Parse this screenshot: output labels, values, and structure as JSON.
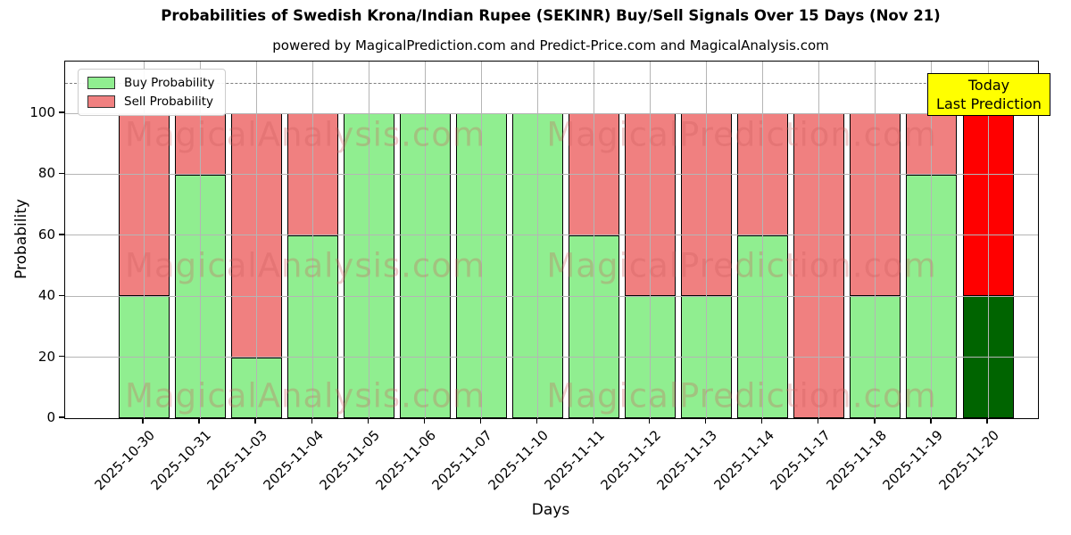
{
  "title": "Probabilities of Swedish Krona/Indian Rupee (SEKINR) Buy/Sell Signals Over 15 Days (Nov 21)",
  "subtitle": "powered by MagicalPrediction.com and Predict-Price.com and MagicalAnalysis.com",
  "axes": {
    "x_label": "Days",
    "y_label": "Probability",
    "y_ticks": [
      0,
      20,
      40,
      60,
      80,
      100
    ],
    "y_max": 117
  },
  "annotation": {
    "line1": "Today",
    "line2": "Last Prediction",
    "bg_color": "#ffff00"
  },
  "watermarks": {
    "left": "MagicalAnalysis.com",
    "right": "MagicalPrediction.com"
  },
  "colors": {
    "buy": "#90ee90",
    "sell": "#f08080",
    "today_buy": "#006400",
    "today_sell": "#ff0000",
    "grid": "#b5b5b5",
    "dashed_line": "#7f7f7f"
  },
  "chart_data": {
    "type": "bar",
    "stacked": true,
    "title": "Probabilities of Swedish Krona/Indian Rupee (SEKINR) Buy/Sell Signals Over 15 Days (Nov 21)",
    "xlabel": "Days",
    "ylabel": "Probability",
    "ylim": [
      0,
      117
    ],
    "yticks": [
      0,
      20,
      40,
      60,
      80,
      100
    ],
    "dashed_guideline_y": 110,
    "grid": true,
    "legend_position": "upper left",
    "categories": [
      "2025-10-30",
      "2025-10-31",
      "2025-11-03",
      "2025-11-04",
      "2025-11-05",
      "2025-11-06",
      "2025-11-07",
      "2025-11-10",
      "2025-11-11",
      "2025-11-12",
      "2025-11-13",
      "2025-11-14",
      "2025-11-17",
      "2025-11-18",
      "2025-11-19",
      "2025-11-20"
    ],
    "series": [
      {
        "name": "Buy Probability",
        "color": "#90ee90",
        "values": [
          40,
          80,
          20,
          60,
          100,
          100,
          100,
          100,
          60,
          40,
          40,
          60,
          0,
          40,
          80,
          40
        ]
      },
      {
        "name": "Sell Probability",
        "color": "#f08080",
        "values": [
          60,
          20,
          80,
          40,
          0,
          0,
          0,
          0,
          40,
          60,
          60,
          40,
          100,
          60,
          20,
          60
        ]
      }
    ],
    "highlight_last_bar": {
      "index": 15,
      "buy_color": "#006400",
      "sell_color": "#ff0000",
      "note": [
        "Today",
        "Last Prediction"
      ]
    }
  }
}
